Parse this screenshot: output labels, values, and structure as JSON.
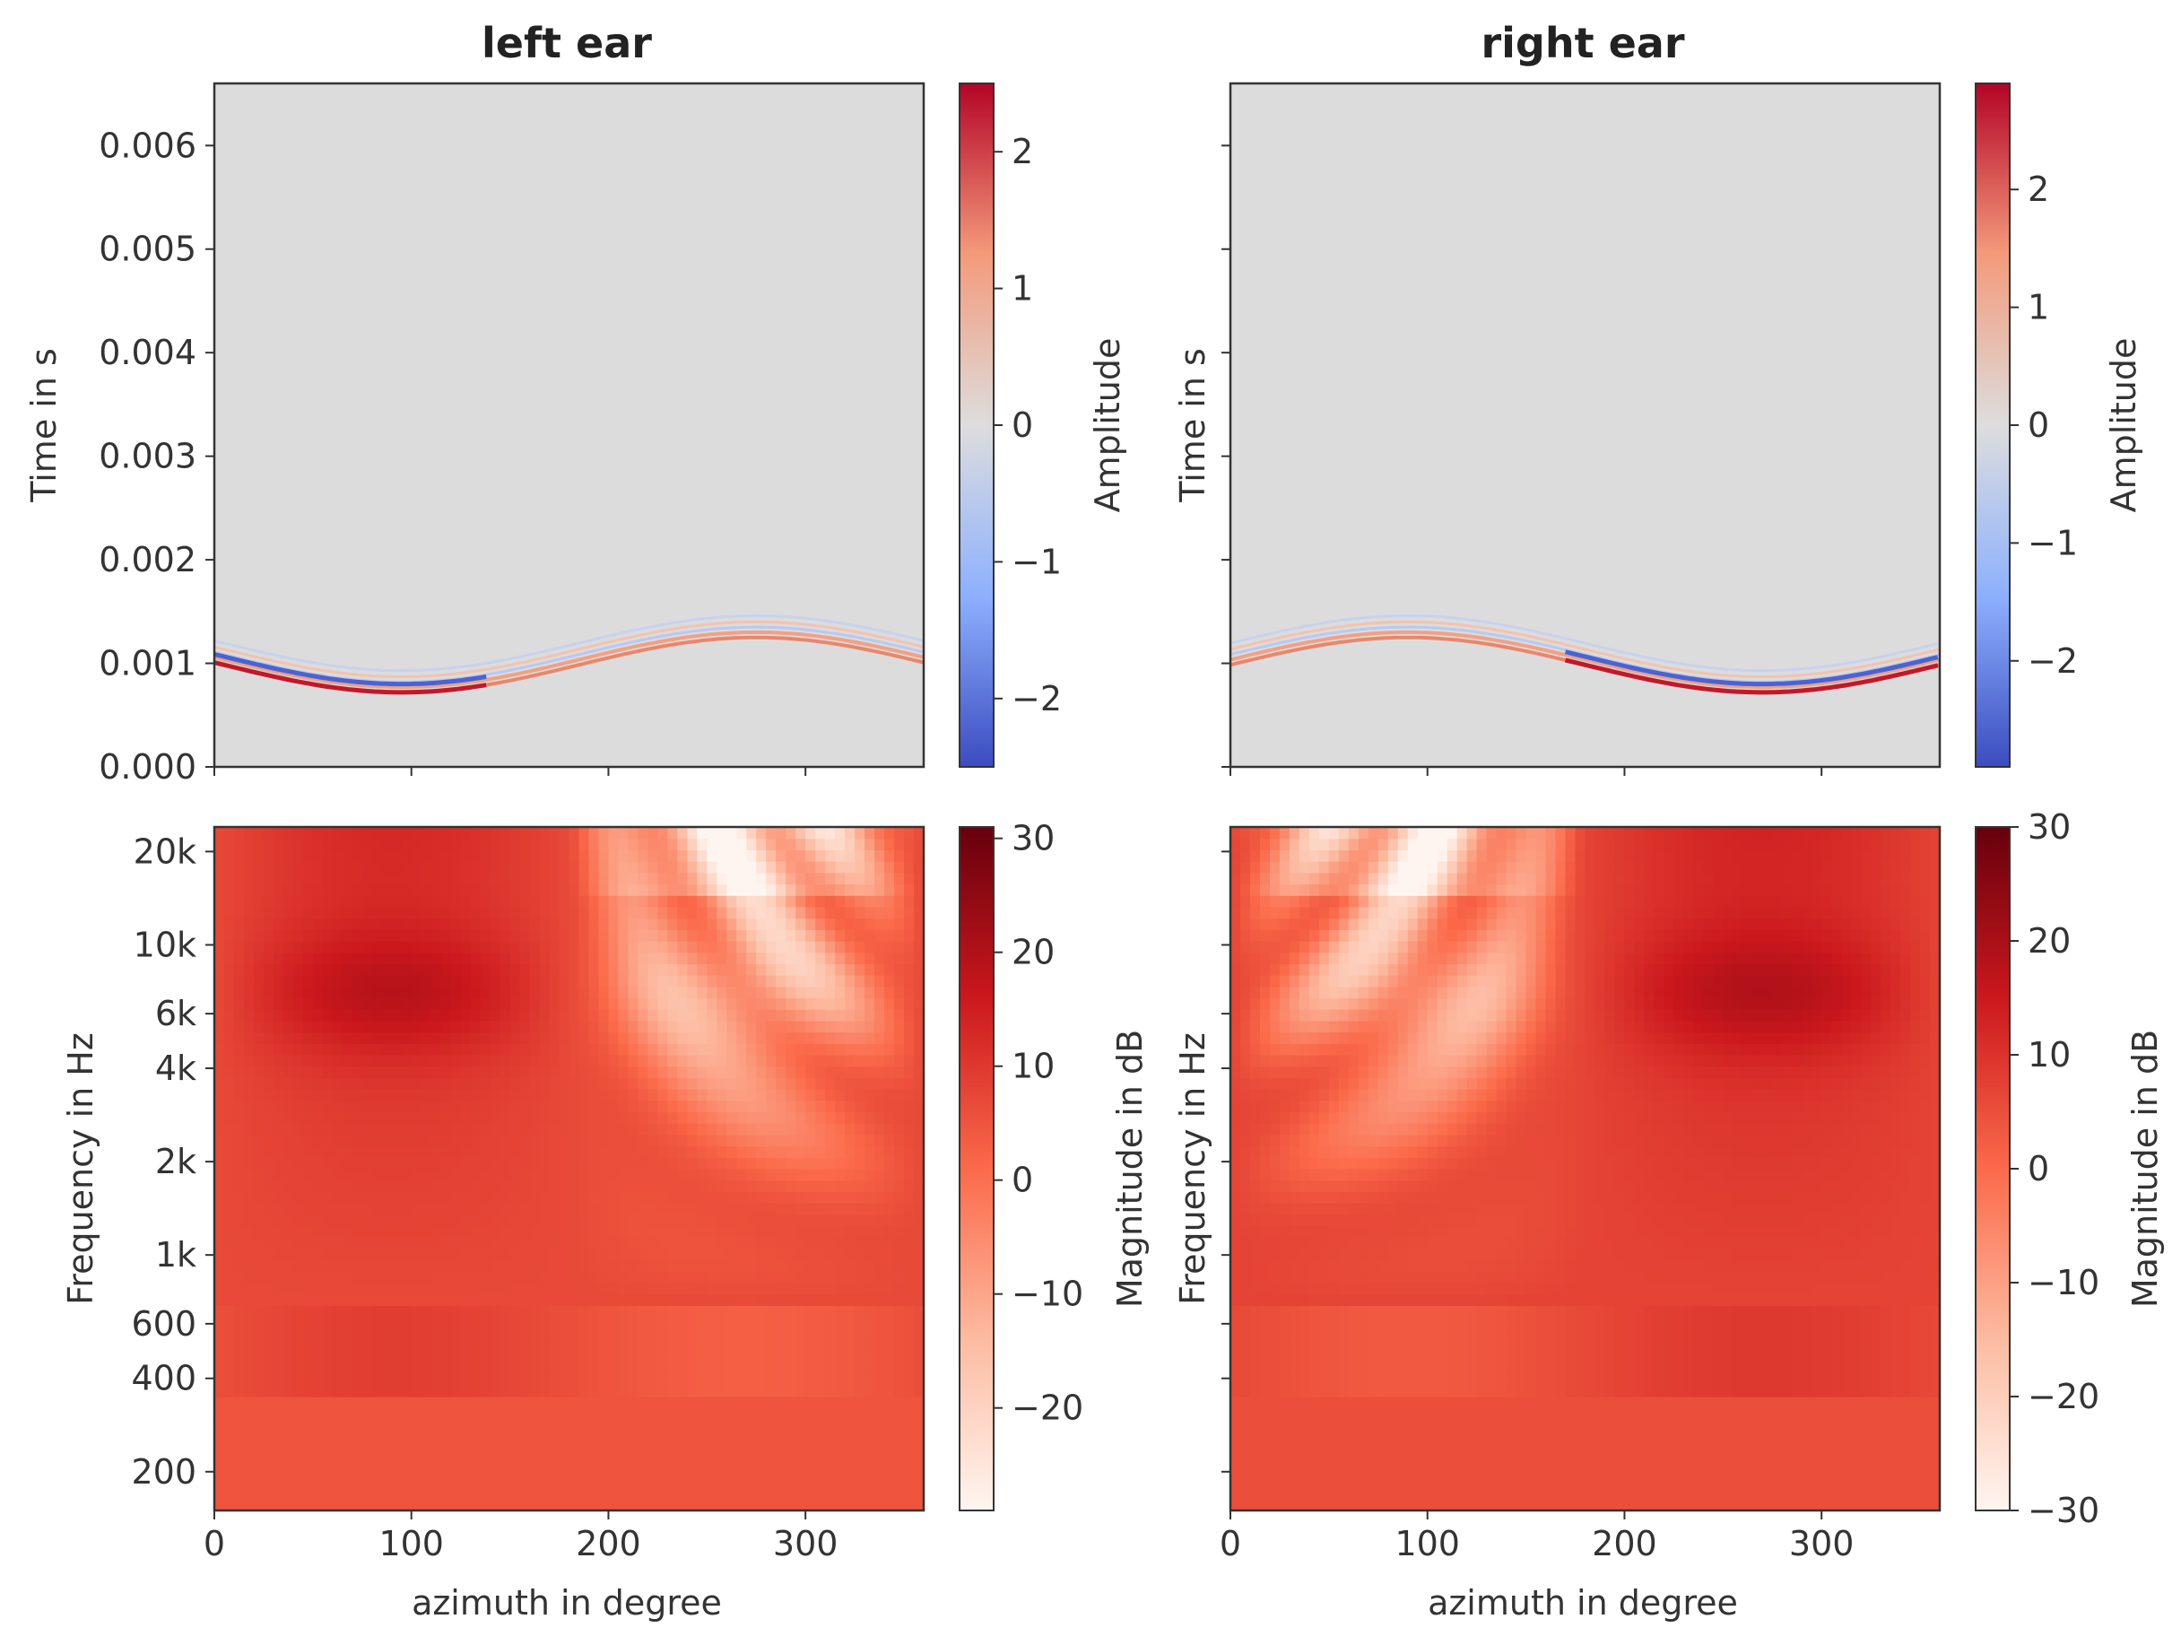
{
  "chart_data": [
    {
      "type": "heatmap",
      "title": "left ear",
      "ylabel": "Time in s",
      "xlim": [
        0,
        360
      ],
      "ylim": [
        0.0,
        0.0066
      ],
      "yticks": [
        "0.000",
        "0.001",
        "0.002",
        "0.003",
        "0.004",
        "0.005",
        "0.006"
      ],
      "colorbar": {
        "label": "Amplitude",
        "cmap": "coolwarm",
        "range": [
          -2.5,
          2.5
        ],
        "ticks": [
          "−2",
          "−1",
          "0",
          "1",
          "2"
        ]
      },
      "wavefront": {
        "description_free_values": true,
        "min_time_s": 0.00072,
        "min_azimuth_deg": 95,
        "max_time_s": 0.00125,
        "max_azimuth_deg": 265
      }
    },
    {
      "type": "heatmap",
      "title": "right ear",
      "ylabel": "Time in s",
      "xlim": [
        0,
        360
      ],
      "ylim": [
        0.0,
        0.0066
      ],
      "colorbar": {
        "label": "Amplitude",
        "cmap": "coolwarm",
        "range": [
          -2.9,
          2.9
        ],
        "ticks": [
          "−2",
          "−1",
          "0",
          "1",
          "2"
        ]
      },
      "wavefront": {
        "min_time_s": 0.00072,
        "min_azimuth_deg": 270,
        "max_time_s": 0.00125,
        "max_azimuth_deg": 95
      }
    },
    {
      "type": "heatmap",
      "xlabel": "azimuth in degree",
      "ylabel": "Frequency in Hz",
      "xlim": [
        0,
        360
      ],
      "xticks": [
        "0",
        "100",
        "200",
        "300"
      ],
      "ylim": [
        150,
        24000
      ],
      "yscale": "log",
      "yticks": [
        {
          "value": 200,
          "label": "200"
        },
        {
          "value": 400,
          "label": "400"
        },
        {
          "value": 600,
          "label": "600"
        },
        {
          "value": 1000,
          "label": "1k"
        },
        {
          "value": 2000,
          "label": "2k"
        },
        {
          "value": 4000,
          "label": "4k"
        },
        {
          "value": 6000,
          "label": "6k"
        },
        {
          "value": 10000,
          "label": "10k"
        },
        {
          "value": 20000,
          "label": "20k"
        }
      ],
      "colorbar": {
        "label": "Magnitude in dB",
        "cmap": "Reds",
        "range": [
          -29,
          31
        ],
        "ticks": [
          "−20",
          "−10",
          "0",
          "10",
          "20",
          "30"
        ]
      }
    },
    {
      "type": "heatmap",
      "xlabel": "azimuth in degree",
      "ylabel": "Frequency in Hz",
      "xlim": [
        0,
        360
      ],
      "xticks": [
        "0",
        "100",
        "200",
        "300"
      ],
      "ylim": [
        150,
        24000
      ],
      "yscale": "log",
      "colorbar": {
        "label": "Magnitude in dB",
        "cmap": "Reds",
        "range": [
          -30,
          30
        ],
        "ticks": [
          "−30",
          "−20",
          "−10",
          "0",
          "10",
          "20",
          "30"
        ]
      }
    }
  ]
}
